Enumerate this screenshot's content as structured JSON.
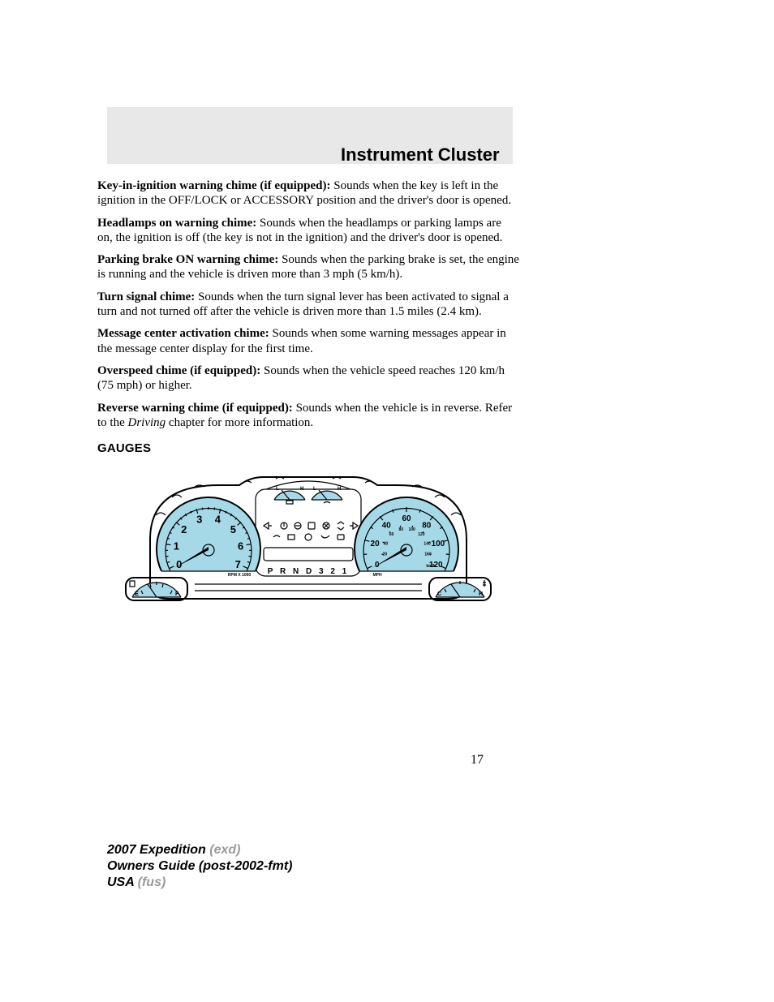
{
  "header": {
    "title": "Instrument Cluster"
  },
  "paragraphs": {
    "key_chime_bold": "Key-in-ignition warning chime (if equipped):",
    "key_chime_rest": " Sounds when the key is left in the ignition in the OFF/LOCK or ACCESSORY position and the driver's door is opened.",
    "headlamp_bold": "Headlamps on warning chime:",
    "headlamp_rest": " Sounds when the headlamps or parking lamps are on, the ignition is off (the key is not in the ignition) and the driver's door is opened.",
    "parking_bold": "Parking brake ON warning chime:",
    "parking_rest": " Sounds when the parking brake is set, the engine is running and the vehicle is driven more than 3 mph (5 km/h).",
    "turn_bold": "Turn signal chime:",
    "turn_rest": " Sounds when the turn signal lever has been activated to signal a turn and not turned off after the vehicle is driven more than 1.5 miles (2.4 km).",
    "msg_bold": "Message center activation chime:",
    "msg_rest": " Sounds when some warning messages appear in the message center display for the first time.",
    "over_bold": "Overspeed chime (if equipped):",
    "over_rest": " Sounds when the vehicle speed reaches 120 km/h (75 mph) or higher.",
    "rev_bold": "Reverse warning chime (if equipped):",
    "rev_rest1": " Sounds when the vehicle is in reverse. Refer to the ",
    "rev_italic": "Driving",
    "rev_rest2": " chapter for more information."
  },
  "gauges_heading": "GAUGES",
  "gauge": {
    "type": "instrument-cluster-diagram",
    "colors": {
      "face": "#a5d9e8",
      "outline": "#000000",
      "background": "#ffffff"
    },
    "tachometer": {
      "numbers": [
        "0",
        "1",
        "2",
        "3",
        "4",
        "5",
        "6",
        "7"
      ],
      "unit_label": "RPM X 1000",
      "number_fontsize": 13
    },
    "speedometer": {
      "outer_numbers": [
        "0",
        "20",
        "40",
        "60",
        "80",
        "100",
        "120"
      ],
      "inner_numbers": [
        "20",
        "40",
        "60",
        "80",
        "100",
        "120",
        "140",
        "160"
      ],
      "unit_outer": "MPH",
      "unit_inner": "km/h",
      "number_fontsize_outer": 10,
      "number_fontsize_inner": 5
    },
    "top_gauges": {
      "left": {
        "labels": [
          "L",
          "H"
        ]
      },
      "right": {
        "labels": [
          "L",
          "H"
        ]
      }
    },
    "fuel_gauge": {
      "labels": [
        "E",
        "F"
      ]
    },
    "temp_gauge": {
      "labels": [
        "C",
        "H"
      ]
    },
    "prnd": "P R N D 3 2 1"
  },
  "page_number": "17",
  "footer": {
    "line1_bold": "2007 Expedition",
    "line1_gray": " (exd)",
    "line2_bold": "Owners Guide (post-2002-fmt)",
    "line3_bold": "USA",
    "line3_gray": " (fus)"
  }
}
